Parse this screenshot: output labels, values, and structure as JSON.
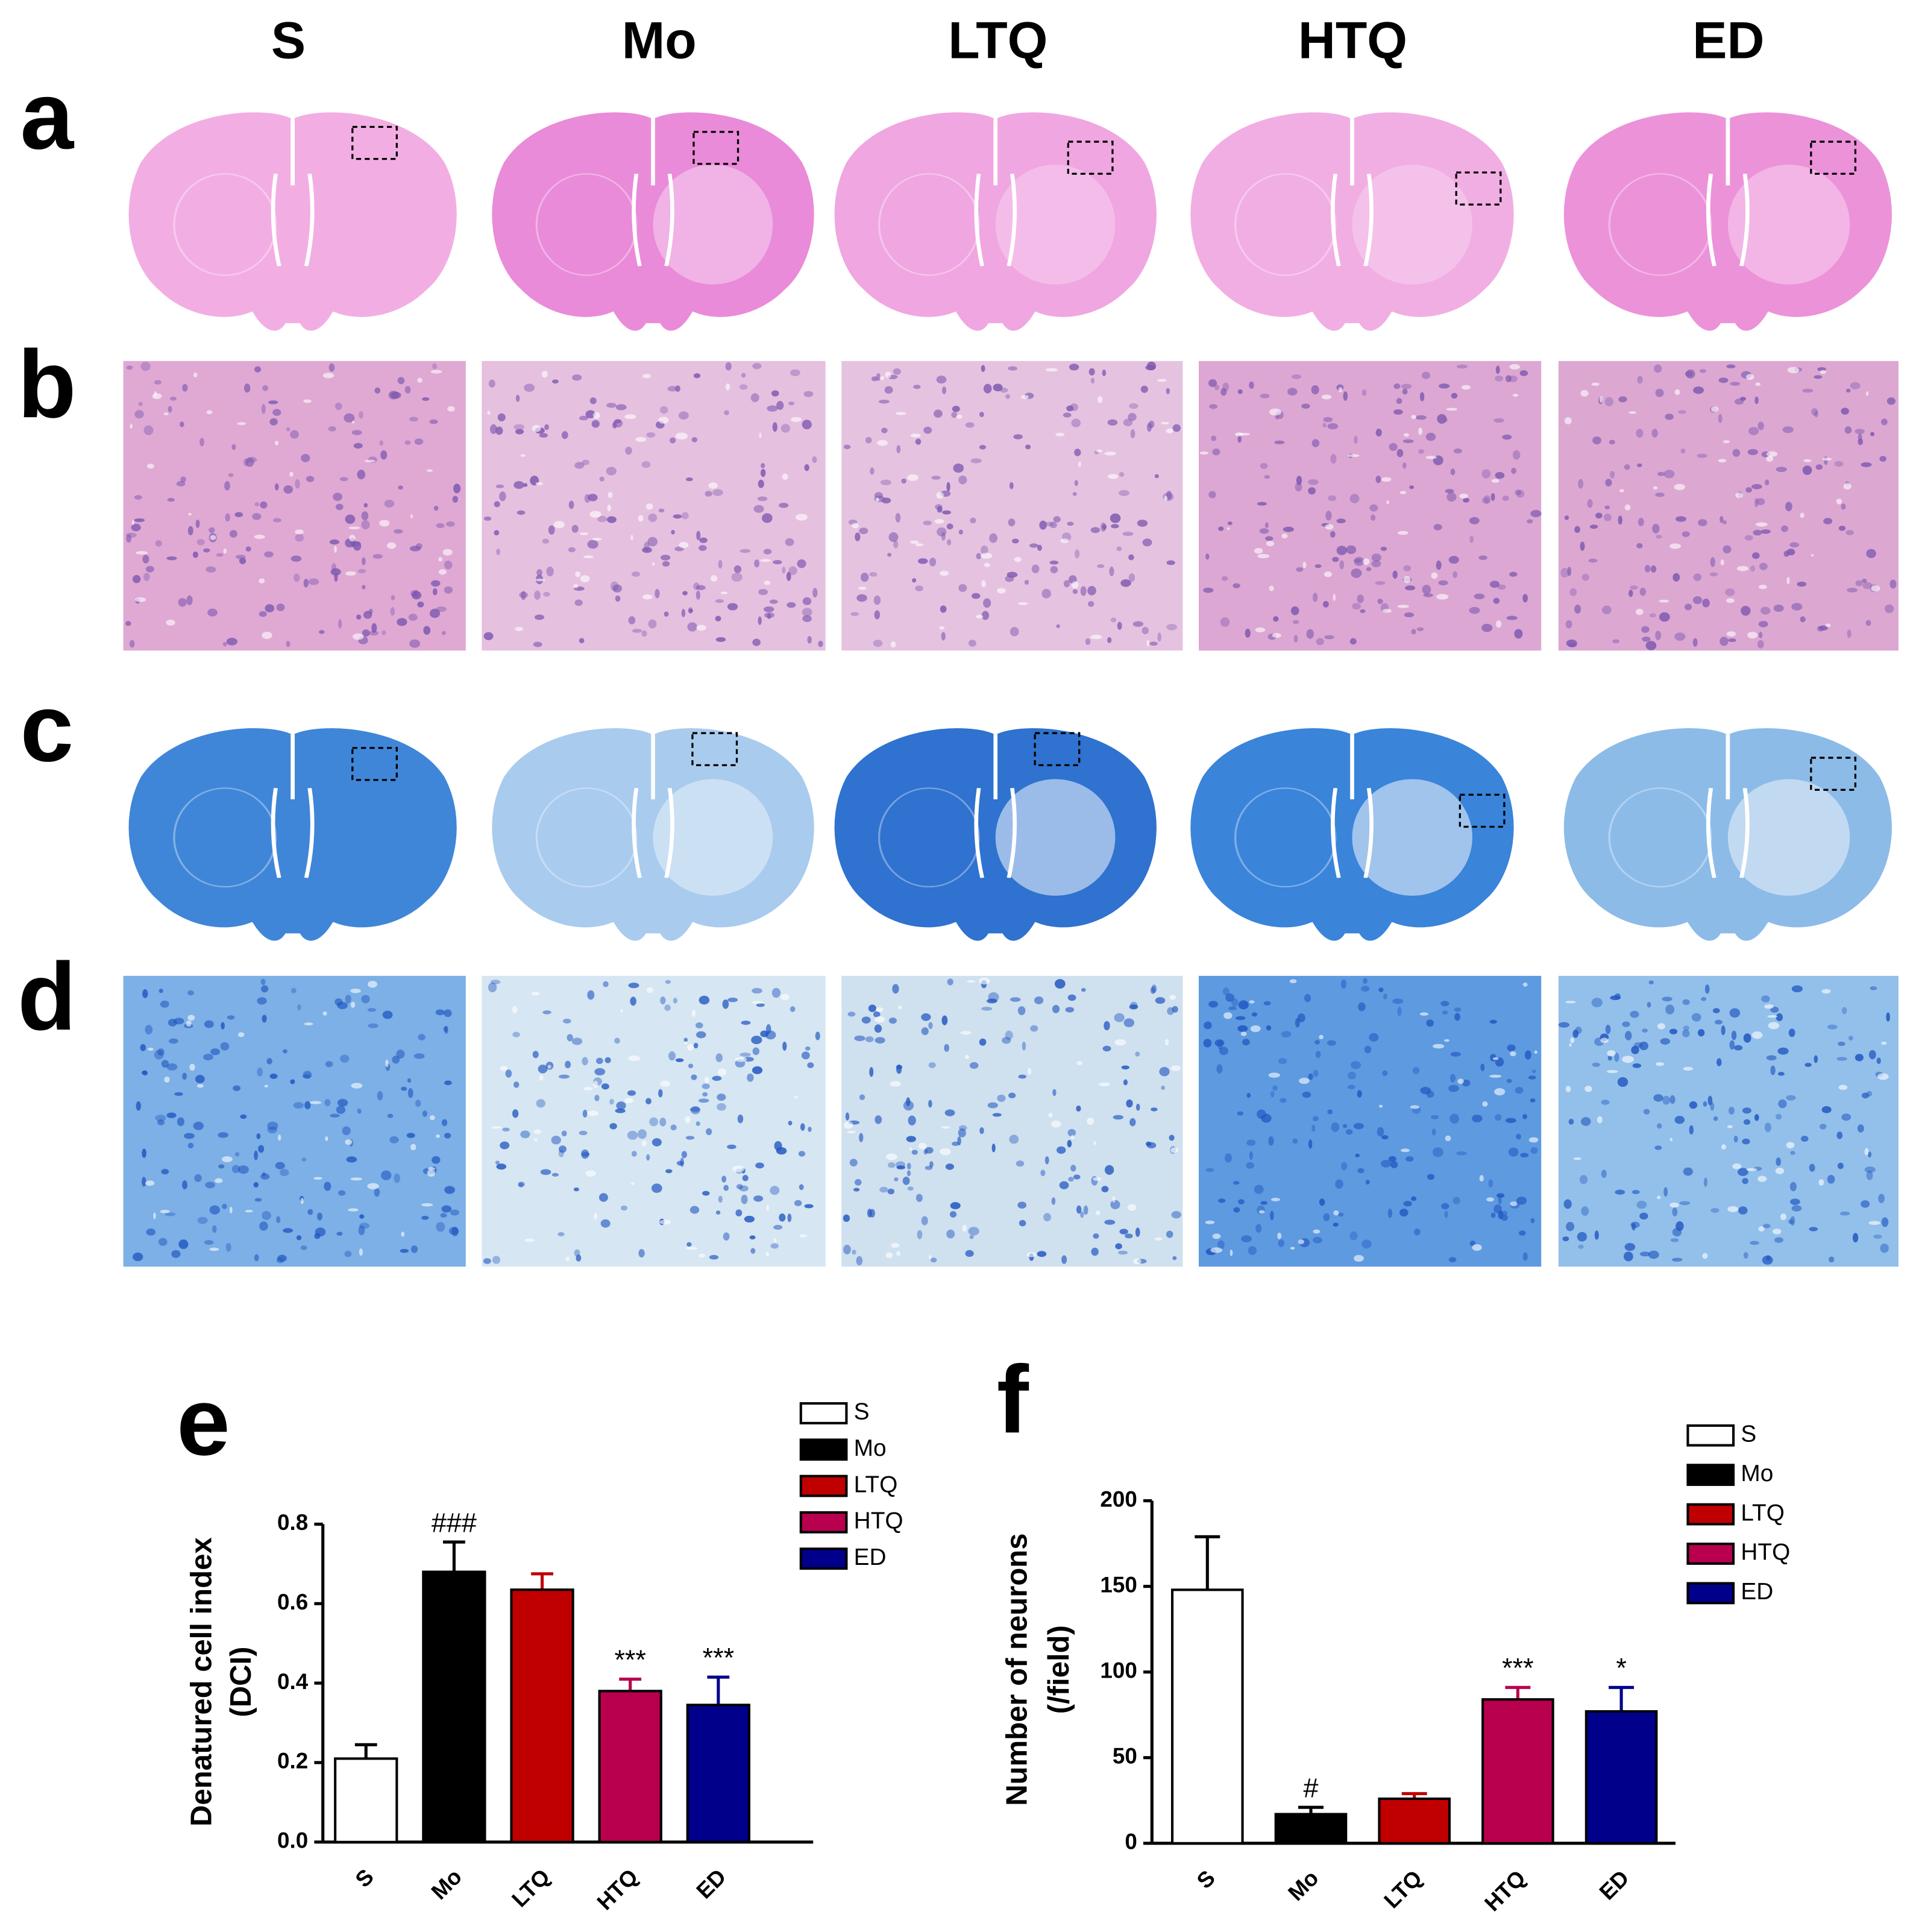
{
  "figure": {
    "column_labels": [
      "S",
      "Mo",
      "LTQ",
      "HTQ",
      "ED"
    ],
    "panel_labels": [
      "a",
      "b",
      "c",
      "d",
      "e",
      "f"
    ]
  },
  "chart_data": [
    {
      "type": "bar",
      "ylabel": [
        "Denatured cell index",
        "(DCI)"
      ],
      "categories": [
        "S",
        "Mo",
        "LTQ",
        "HTQ",
        "ED"
      ],
      "values": [
        0.21,
        0.68,
        0.635,
        0.38,
        0.345
      ],
      "errors": [
        0.035,
        0.075,
        0.04,
        0.03,
        0.07
      ],
      "annotations": [
        null,
        "###",
        null,
        "***",
        "***"
      ],
      "colors": [
        "#ffffff",
        "#000000",
        "#c00000",
        "#b8004e",
        "#00008b"
      ],
      "ylim": [
        0,
        0.8
      ],
      "yticks": [
        {
          "value": 0,
          "label": "0.0"
        },
        0.2,
        0.4,
        0.6,
        0.8
      ]
    },
    {
      "type": "bar",
      "ylabel": [
        "Number of neurons",
        "(/field)"
      ],
      "categories": [
        "S",
        "Mo",
        "LTQ",
        "HTQ",
        "ED"
      ],
      "values": [
        148,
        17,
        26,
        84,
        77
      ],
      "errors": [
        31,
        4,
        3,
        7,
        14
      ],
      "annotations": [
        null,
        "#",
        null,
        "***",
        "*"
      ],
      "colors": [
        "#ffffff",
        "#000000",
        "#c00000",
        "#b8004e",
        "#00008b"
      ],
      "ylim": [
        0,
        200
      ],
      "yticks": [
        0,
        50,
        100,
        150,
        200
      ]
    }
  ]
}
